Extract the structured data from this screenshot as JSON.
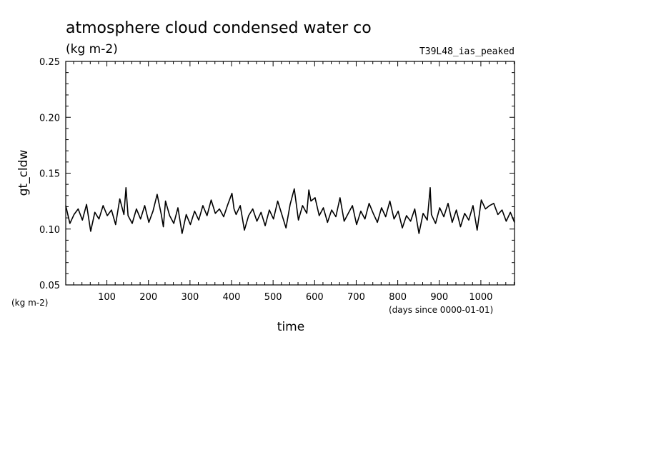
{
  "chart_data": {
    "type": "line",
    "title": "atmosphere cloud condensed water co",
    "subtitle": "(kg m-2)",
    "run_label": "T39L48_ias_peaked",
    "ylabel": "gt_cldw",
    "y_units": "(kg m-2)",
    "xlabel": "time",
    "x_units": "(days since 0000-01-01)",
    "xlim": [
      1,
      1081
    ],
    "ylim": [
      0.05,
      0.25
    ],
    "x_ticks": [
      100,
      200,
      300,
      400,
      500,
      600,
      700,
      800,
      900,
      1000
    ],
    "x_tick_labels": [
      "100",
      "200",
      "300",
      "400",
      "500",
      "600",
      "700",
      "800",
      "900",
      "1000"
    ],
    "y_ticks": [
      0.05,
      0.1,
      0.15,
      0.2,
      0.25
    ],
    "y_tick_labels": [
      "0.05",
      "0.10",
      "0.15",
      "0.20",
      "0.25"
    ],
    "grid": false,
    "line_color": "#000000",
    "series": [
      {
        "x": [
          1,
          11,
          21,
          31,
          41,
          51,
          61,
          71,
          81,
          91,
          101,
          111,
          121,
          131,
          141,
          146,
          151,
          161,
          171,
          181,
          191,
          201,
          211,
          221,
          231,
          236,
          241,
          251,
          261,
          271,
          281,
          291,
          301,
          311,
          321,
          331,
          341,
          351,
          361,
          371,
          381,
          391,
          401,
          406,
          411,
          421,
          431,
          441,
          451,
          461,
          471,
          481,
          491,
          501,
          511,
          521,
          531,
          541,
          551,
          561,
          571,
          581,
          586,
          591,
          601,
          611,
          621,
          631,
          641,
          651,
          661,
          671,
          681,
          691,
          701,
          711,
          721,
          731,
          741,
          751,
          761,
          771,
          781,
          791,
          801,
          811,
          821,
          831,
          841,
          851,
          861,
          871,
          878,
          881,
          891,
          901,
          911,
          921,
          931,
          941,
          951,
          961,
          971,
          981,
          991,
          1001,
          1011,
          1021,
          1031,
          1041,
          1051,
          1061,
          1071,
          1081
        ],
        "y": [
          0.121,
          0.105,
          0.113,
          0.118,
          0.108,
          0.122,
          0.098,
          0.115,
          0.109,
          0.121,
          0.112,
          0.117,
          0.104,
          0.127,
          0.113,
          0.137,
          0.112,
          0.105,
          0.118,
          0.109,
          0.121,
          0.106,
          0.116,
          0.131,
          0.113,
          0.102,
          0.125,
          0.112,
          0.105,
          0.119,
          0.096,
          0.113,
          0.104,
          0.116,
          0.108,
          0.121,
          0.112,
          0.126,
          0.114,
          0.118,
          0.111,
          0.122,
          0.132,
          0.118,
          0.113,
          0.121,
          0.099,
          0.112,
          0.118,
          0.107,
          0.115,
          0.103,
          0.117,
          0.109,
          0.125,
          0.113,
          0.101,
          0.122,
          0.136,
          0.108,
          0.121,
          0.114,
          0.135,
          0.125,
          0.128,
          0.112,
          0.119,
          0.106,
          0.117,
          0.111,
          0.128,
          0.107,
          0.114,
          0.121,
          0.104,
          0.116,
          0.109,
          0.123,
          0.114,
          0.106,
          0.119,
          0.111,
          0.125,
          0.109,
          0.116,
          0.101,
          0.112,
          0.107,
          0.118,
          0.096,
          0.114,
          0.108,
          0.137,
          0.113,
          0.105,
          0.119,
          0.111,
          0.123,
          0.106,
          0.117,
          0.102,
          0.114,
          0.108,
          0.121,
          0.099,
          0.126,
          0.118,
          0.121,
          0.123,
          0.113,
          0.117,
          0.107,
          0.115,
          0.106
        ]
      }
    ]
  }
}
